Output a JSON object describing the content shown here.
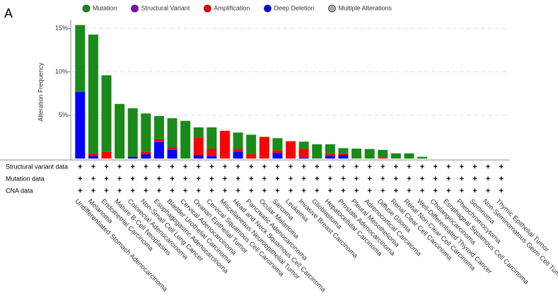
{
  "panel_label": "A",
  "chart_data": {
    "type": "stacked_bar",
    "ylabel": "Alteration Frequency",
    "categories": [
      "Undifferentiated Stomach Adenocarcinoma",
      "Melanoma",
      "Endometrial Carcinoma",
      "Mature B-Cell Neoplasms",
      "Colorectal Adenocarcinoma",
      "Non-Small Cell Lung Cancer",
      "Esophagogastric Adenocarcinoma",
      "Bladder Urothelial Carcinoma",
      "Cervical Adenocarcinoma",
      "Ovarian Epithelial Tumor",
      "Cervical Squamous Cell Carcinoma",
      "Miscellaneous Neuroepithelial Tumor",
      "Head and Neck Squamous Cell Carcinoma",
      "Pancreatic Adenocarcinoma",
      "Ocular Melanoma",
      "Sarcoma",
      "Leukemia",
      "Invasive Breast Carcinoma",
      "Glioblastoma",
      "Hepatocellular Carcinoma",
      "Prostate Adenocarcinoma",
      "Pleural Mesothelioma",
      "Adrenocortical Carcinoma",
      "Diffuse Glioma",
      "Renal Clear Cell Carcinoma",
      "Renal Non-Clear Cell Carcinoma",
      "Well-Differentiated Thyroid Cancer",
      "Cholangiocarcinoma",
      "Esophageal Squamous Cell Carcinoma",
      "Pheochromocytoma",
      "Seminoma",
      "Non-Seminomatous Germ Cell Tumor",
      "Thymic Epithelial Tumor"
    ],
    "series": [
      {
        "name": "Mutation",
        "color": "#1a8a1a",
        "values": [
          7.7,
          13.7,
          8.8,
          6.3,
          5.6,
          4.4,
          2.6,
          3.35,
          4.35,
          1.2,
          2.5,
          0,
          1.9,
          2.25,
          0,
          1.4,
          0,
          0.85,
          1.65,
          1.05,
          0.6,
          1.15,
          1.1,
          0.9,
          0.6,
          0.6,
          0.2,
          0,
          0,
          0,
          0,
          0,
          0
        ]
      },
      {
        "name": "Structural Variant",
        "color": "#8b00c9",
        "values": [
          0,
          0,
          0,
          0,
          0,
          0,
          0,
          0,
          0,
          0,
          0,
          0,
          0,
          0,
          0,
          0,
          0,
          0,
          0,
          0,
          0,
          0,
          0,
          0,
          0,
          0,
          0,
          0,
          0,
          0,
          0,
          0,
          0
        ]
      },
      {
        "name": "Amplification",
        "color": "#ff0000",
        "values": [
          0,
          0.3,
          0.8,
          0,
          0,
          0.3,
          0.4,
          0.3,
          0,
          2.0,
          0.8,
          3.2,
          0.3,
          0.5,
          2.5,
          0.3,
          2.0,
          1.0,
          0,
          0.3,
          0.2,
          0,
          0,
          0.1,
          0,
          0,
          0,
          0,
          0,
          0,
          0,
          0,
          0
        ]
      },
      {
        "name": "Deep Deletion",
        "color": "#0000ff",
        "values": [
          7.7,
          0.3,
          0,
          0,
          0.2,
          0.5,
          1.9,
          1.0,
          0,
          0.4,
          0.3,
          0,
          0.8,
          0,
          0,
          0.65,
          0,
          0.1,
          0,
          0.3,
          0.4,
          0,
          0,
          0,
          0,
          0,
          0,
          0,
          0,
          0,
          0,
          0,
          0
        ]
      },
      {
        "name": "Multiple Alterations",
        "color": "#aaaaaa",
        "values": [
          0,
          0,
          0,
          0,
          0,
          0,
          0,
          0,
          0,
          0,
          0,
          0,
          0,
          0,
          0,
          0,
          0,
          0,
          0,
          0,
          0,
          0,
          0,
          0,
          0,
          0,
          0,
          0,
          0,
          0,
          0,
          0,
          0
        ]
      }
    ],
    "stack_order": [
      "Deep Deletion",
      "Amplification",
      "Structural Variant",
      "Multiple Alterations",
      "Mutation"
    ],
    "ylim": [
      0,
      16
    ],
    "yticks": [
      {
        "value": 5,
        "label": "5%"
      },
      {
        "value": 10,
        "label": "10%"
      },
      {
        "value": 15,
        "label": "15%"
      }
    ],
    "grid": true,
    "profile_rows": [
      "Structural variant data",
      "Mutation data",
      "CNA data"
    ],
    "profiled_symbol": "+"
  }
}
